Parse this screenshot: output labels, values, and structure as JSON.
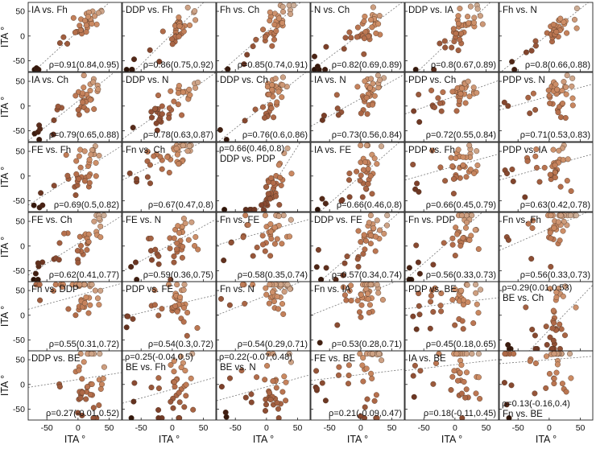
{
  "figure": {
    "y_axis_label": "ITA °",
    "x_axis_label": "ITA °",
    "y_ticks": [
      50,
      0,
      -50
    ],
    "x_ticks": [
      -50,
      0,
      50
    ]
  },
  "chart_data": {
    "type": "scatter",
    "layout": "6x6 grid of scatter plots with linear trend lines",
    "xlim": [
      -80,
      70
    ],
    "ylim": [
      -72,
      68
    ],
    "grid": false,
    "marker_colors": {
      "light": "#c9aa8c",
      "mid": "#c98860",
      "dark": "#7a3e28",
      "darkest": "#2a1208"
    },
    "trend_line_color": "#777777",
    "panels": [
      {
        "title": "IA vs. Fh",
        "rho": "ρ=0.91(0.84,0.95)",
        "corr": 0.91,
        "slope": 1.15,
        "intercept": 10,
        "title_pos": "top",
        "rho_pos": "bottom"
      },
      {
        "title": "DDP vs. Fh",
        "rho": "ρ=0.86(0.75,0.92)",
        "corr": 0.86,
        "slope": 1.25,
        "intercept": 5,
        "title_pos": "top",
        "rho_pos": "bottom"
      },
      {
        "title": "Fh vs. Ch",
        "rho": "ρ=0.85(0.74,0.91)",
        "corr": 0.85,
        "slope": 1.1,
        "intercept": 8,
        "title_pos": "top",
        "rho_pos": "bottom"
      },
      {
        "title": "N vs. Ch",
        "rho": "ρ=0.82(0.69,0.89)",
        "corr": 0.82,
        "slope": 0.95,
        "intercept": 5,
        "title_pos": "top",
        "rho_pos": "bottom"
      },
      {
        "title": "DDP vs. IA",
        "rho": "ρ=0.8(0.67,0.89)",
        "corr": 0.8,
        "slope": 1.2,
        "intercept": 0,
        "title_pos": "top",
        "rho_pos": "bottom"
      },
      {
        "title": "Fh vs. N",
        "rho": "ρ=0.8(0.66,0.88)",
        "corr": 0.8,
        "slope": 1.0,
        "intercept": 5,
        "title_pos": "top",
        "rho_pos": "bottom"
      },
      {
        "title": "IA vs. Ch",
        "rho": "ρ=0.79(0.65,0.88)",
        "corr": 0.79,
        "slope": 1.0,
        "intercept": 10,
        "title_pos": "top",
        "rho_pos": "bottom"
      },
      {
        "title": "DDP vs. N",
        "rho": "ρ=0.78(0.63,0.87)",
        "corr": 0.78,
        "slope": 0.9,
        "intercept": 5,
        "title_pos": "top",
        "rho_pos": "bottom"
      },
      {
        "title": "DDP vs. Ch",
        "rho": "ρ=0.76(0.6,0.86)",
        "corr": 0.76,
        "slope": 1.0,
        "intercept": 5,
        "title_pos": "top",
        "rho_pos": "bottom"
      },
      {
        "title": "IA vs. N",
        "rho": "ρ=0.73(0.56,0.84)",
        "corr": 0.73,
        "slope": 0.7,
        "intercept": 15,
        "title_pos": "top",
        "rho_pos": "bottom"
      },
      {
        "title": "PDP vs. Ch",
        "rho": "ρ=0.72(0.55,0.84)",
        "corr": 0.72,
        "slope": 0.45,
        "intercept": 20,
        "title_pos": "top",
        "rho_pos": "bottom"
      },
      {
        "title": "PDP vs. N",
        "rho": "ρ=0.71(0.53,0.83)",
        "corr": 0.71,
        "slope": 0.35,
        "intercept": 20,
        "title_pos": "top",
        "rho_pos": "bottom"
      },
      {
        "title": "FE vs. Fh",
        "rho": "ρ=0.69(0.5,0.82)",
        "corr": 0.69,
        "slope": 0.8,
        "intercept": 5,
        "title_pos": "top",
        "rho_pos": "bottom"
      },
      {
        "title": "Fn vs. Ch",
        "rho": "ρ=0.67(0.47,0.8)",
        "corr": 0.67,
        "slope": 0.6,
        "intercept": 40,
        "title_pos": "top",
        "rho_pos": "bottom"
      },
      {
        "title": "DDP vs. PDP",
        "rho": "ρ=0.66(0.46,0.8)",
        "corr": 0.66,
        "slope": 2.0,
        "intercept": -40,
        "title_pos": "upper",
        "rho_pos": "top"
      },
      {
        "title": "IA vs. FE",
        "rho": "ρ=0.66(0.46,0.8)",
        "corr": 0.66,
        "slope": 1.1,
        "intercept": 0,
        "title_pos": "top",
        "rho_pos": "bottom"
      },
      {
        "title": "PDP vs. Fh",
        "rho": "ρ=0.66(0.45,0.79)",
        "corr": 0.66,
        "slope": 0.35,
        "intercept": 20,
        "title_pos": "top",
        "rho_pos": "bottom"
      },
      {
        "title": "PDP vs. IA",
        "rho": "ρ=0.63(0.42,0.78)",
        "corr": 0.63,
        "slope": 0.35,
        "intercept": 20,
        "title_pos": "top",
        "rho_pos": "bottom"
      },
      {
        "title": "FE vs. Ch",
        "rho": "ρ=0.62(0.41,0.77)",
        "corr": 0.62,
        "slope": 0.8,
        "intercept": 5,
        "title_pos": "top",
        "rho_pos": "bottom"
      },
      {
        "title": "FE vs. N",
        "rho": "ρ=0.59(0.36,0.75)",
        "corr": 0.59,
        "slope": 0.7,
        "intercept": 5,
        "title_pos": "top",
        "rho_pos": "bottom"
      },
      {
        "title": "Fn vs. FE",
        "rho": "ρ=0.58(0.35,0.74)",
        "corr": 0.58,
        "slope": 0.35,
        "intercept": 30,
        "title_pos": "top",
        "rho_pos": "bottom"
      },
      {
        "title": "DDP vs. FE",
        "rho": "ρ=0.57(0.34,0.74)",
        "corr": 0.57,
        "slope": 1.1,
        "intercept": 0,
        "title_pos": "top",
        "rho_pos": "bottom"
      },
      {
        "title": "Fn vs. PDP",
        "rho": "ρ=0.56(0.33,0.73)",
        "corr": 0.56,
        "slope": 1.1,
        "intercept": 20,
        "title_pos": "top",
        "rho_pos": "bottom"
      },
      {
        "title": "Fn vs. Fh",
        "rho": "ρ=0.56(0.33,0.73)",
        "corr": 0.56,
        "slope": 0.55,
        "intercept": 35,
        "title_pos": "top",
        "rho_pos": "bottom"
      },
      {
        "title": "Fn vs. DDP",
        "rho": "ρ=0.55(0.31,0.72)",
        "corr": 0.55,
        "slope": 0.35,
        "intercept": 40,
        "title_pos": "top",
        "rho_pos": "bottom"
      },
      {
        "title": "PDP vs. FE",
        "rho": "ρ=0.54(0.3,0.72)",
        "corr": 0.54,
        "slope": 0.3,
        "intercept": 20,
        "title_pos": "top",
        "rho_pos": "bottom"
      },
      {
        "title": "Fn vs. N",
        "rho": "ρ=0.54(0.29,0.71)",
        "corr": 0.54,
        "slope": 0.5,
        "intercept": 40,
        "title_pos": "top",
        "rho_pos": "bottom"
      },
      {
        "title": "Fn vs. IA",
        "rho": "ρ=0.53(0.28,0.71)",
        "corr": 0.53,
        "slope": 0.5,
        "intercept": 40,
        "title_pos": "top",
        "rho_pos": "bottom"
      },
      {
        "title": "PDP vs. BE",
        "rho": "ρ=0.45(0.18,0.65)",
        "corr": 0.45,
        "slope": 0.15,
        "intercept": 25,
        "title_pos": "top",
        "rho_pos": "bottom"
      },
      {
        "title": "BE vs. Ch",
        "rho": "ρ=0.29(0.01,0.53)",
        "corr": 0.29,
        "slope": 1.3,
        "intercept": -30,
        "title_pos": "upper",
        "rho_pos": "top"
      },
      {
        "title": "DDP vs. BE",
        "rho": "ρ=0.27(-0.01,0.52)",
        "corr": 0.27,
        "slope": 0.2,
        "intercept": 10,
        "title_pos": "top",
        "rho_pos": "bottom"
      },
      {
        "title": "BE vs. Fh",
        "rho": "ρ=0.25(-0.04,0.5)",
        "corr": 0.25,
        "slope": 0.35,
        "intercept": -10,
        "title_pos": "upper",
        "rho_pos": "top"
      },
      {
        "title": "BE vs. N",
        "rho": "ρ=0.22(-0.07,0.48)",
        "corr": 0.22,
        "slope": 0.35,
        "intercept": -5,
        "title_pos": "upper",
        "rho_pos": "top"
      },
      {
        "title": "FE vs. BE",
        "rho": "ρ=0.21(-0.09,0.47)",
        "corr": 0.21,
        "slope": 0.15,
        "intercept": 20,
        "title_pos": "top",
        "rho_pos": "bottom"
      },
      {
        "title": "IA vs. BE",
        "rho": "ρ=0.18(-0.11,0.45)",
        "corr": 0.18,
        "slope": 0.15,
        "intercept": 40,
        "title_pos": "top",
        "rho_pos": "bottom"
      },
      {
        "title": "Fn vs. BE",
        "rho": "ρ=0.13(-0.16,0.4)",
        "corr": 0.13,
        "slope": 0.1,
        "intercept": 50,
        "title_pos": "bottom",
        "rho_pos": "lower"
      }
    ]
  }
}
